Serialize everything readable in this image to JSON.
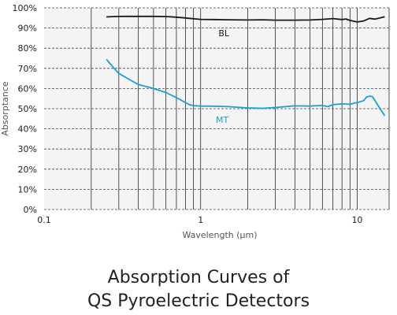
{
  "chart_data": {
    "type": "line",
    "title_lines": [
      "Absorption Curves of",
      "QS Pyroelectric Detectors"
    ],
    "xlabel": "Wavelength (μm)",
    "ylabel": "Absorptance",
    "x_scale": "log",
    "xlim": [
      0.1,
      16
    ],
    "ylim": [
      0,
      100
    ],
    "x_tick_labels": [
      {
        "value": 0.1,
        "label": "0.1"
      },
      {
        "value": 1,
        "label": "1"
      },
      {
        "value": 10,
        "label": "10"
      }
    ],
    "y_tick_labels": [
      {
        "value": 0,
        "label": "0%"
      },
      {
        "value": 10,
        "label": "10%"
      },
      {
        "value": 20,
        "label": "20%"
      },
      {
        "value": 30,
        "label": "30%"
      },
      {
        "value": 40,
        "label": "40%"
      },
      {
        "value": 50,
        "label": "50%"
      },
      {
        "value": 60,
        "label": "60%"
      },
      {
        "value": 70,
        "label": "70%"
      },
      {
        "value": 80,
        "label": "80%"
      },
      {
        "value": 90,
        "label": "90%"
      },
      {
        "value": 100,
        "label": "100%"
      }
    ],
    "grid": {
      "vertical": "solid",
      "horizontal": "dashed"
    },
    "series": [
      {
        "name": "BL",
        "color": "#1a1a1a",
        "label_at": {
          "x": 1.3,
          "y": 86
        },
        "x": [
          0.25,
          0.28,
          0.32,
          0.4,
          0.5,
          0.6,
          0.7,
          0.8,
          0.9,
          1.0,
          1.2,
          1.5,
          2,
          2.5,
          3,
          4,
          5,
          6,
          7,
          8,
          8.5,
          9,
          10,
          11,
          12,
          13,
          14,
          15
        ],
        "y": [
          95.5,
          95.7,
          95.8,
          95.8,
          95.8,
          95.7,
          95.4,
          95.0,
          94.6,
          94.3,
          94.2,
          94.1,
          94.0,
          94.1,
          93.9,
          93.9,
          94.0,
          94.3,
          94.7,
          94.2,
          94.5,
          93.8,
          93.0,
          93.5,
          94.8,
          94.4,
          95.0,
          95.6
        ]
      },
      {
        "name": "MT",
        "color": "#1aa0d8",
        "label_at": {
          "x": 1.25,
          "y": 43
        },
        "x": [
          0.25,
          0.28,
          0.3,
          0.35,
          0.4,
          0.5,
          0.6,
          0.7,
          0.8,
          0.85,
          0.9,
          1.0,
          1.2,
          1.5,
          2,
          2.5,
          3,
          4,
          5,
          6,
          6.5,
          7,
          8,
          9,
          10,
          11,
          11.5,
          12,
          12.5,
          13,
          14,
          15
        ],
        "y": [
          74.5,
          70,
          67.5,
          64.5,
          62,
          60,
          58,
          55.5,
          53,
          52,
          51.5,
          51.3,
          51.2,
          51,
          50.4,
          50.2,
          50.6,
          51.4,
          51.3,
          51.6,
          51,
          52,
          52.4,
          52.2,
          53,
          54,
          55.8,
          56.2,
          56,
          54,
          50,
          46.5
        ]
      }
    ]
  }
}
